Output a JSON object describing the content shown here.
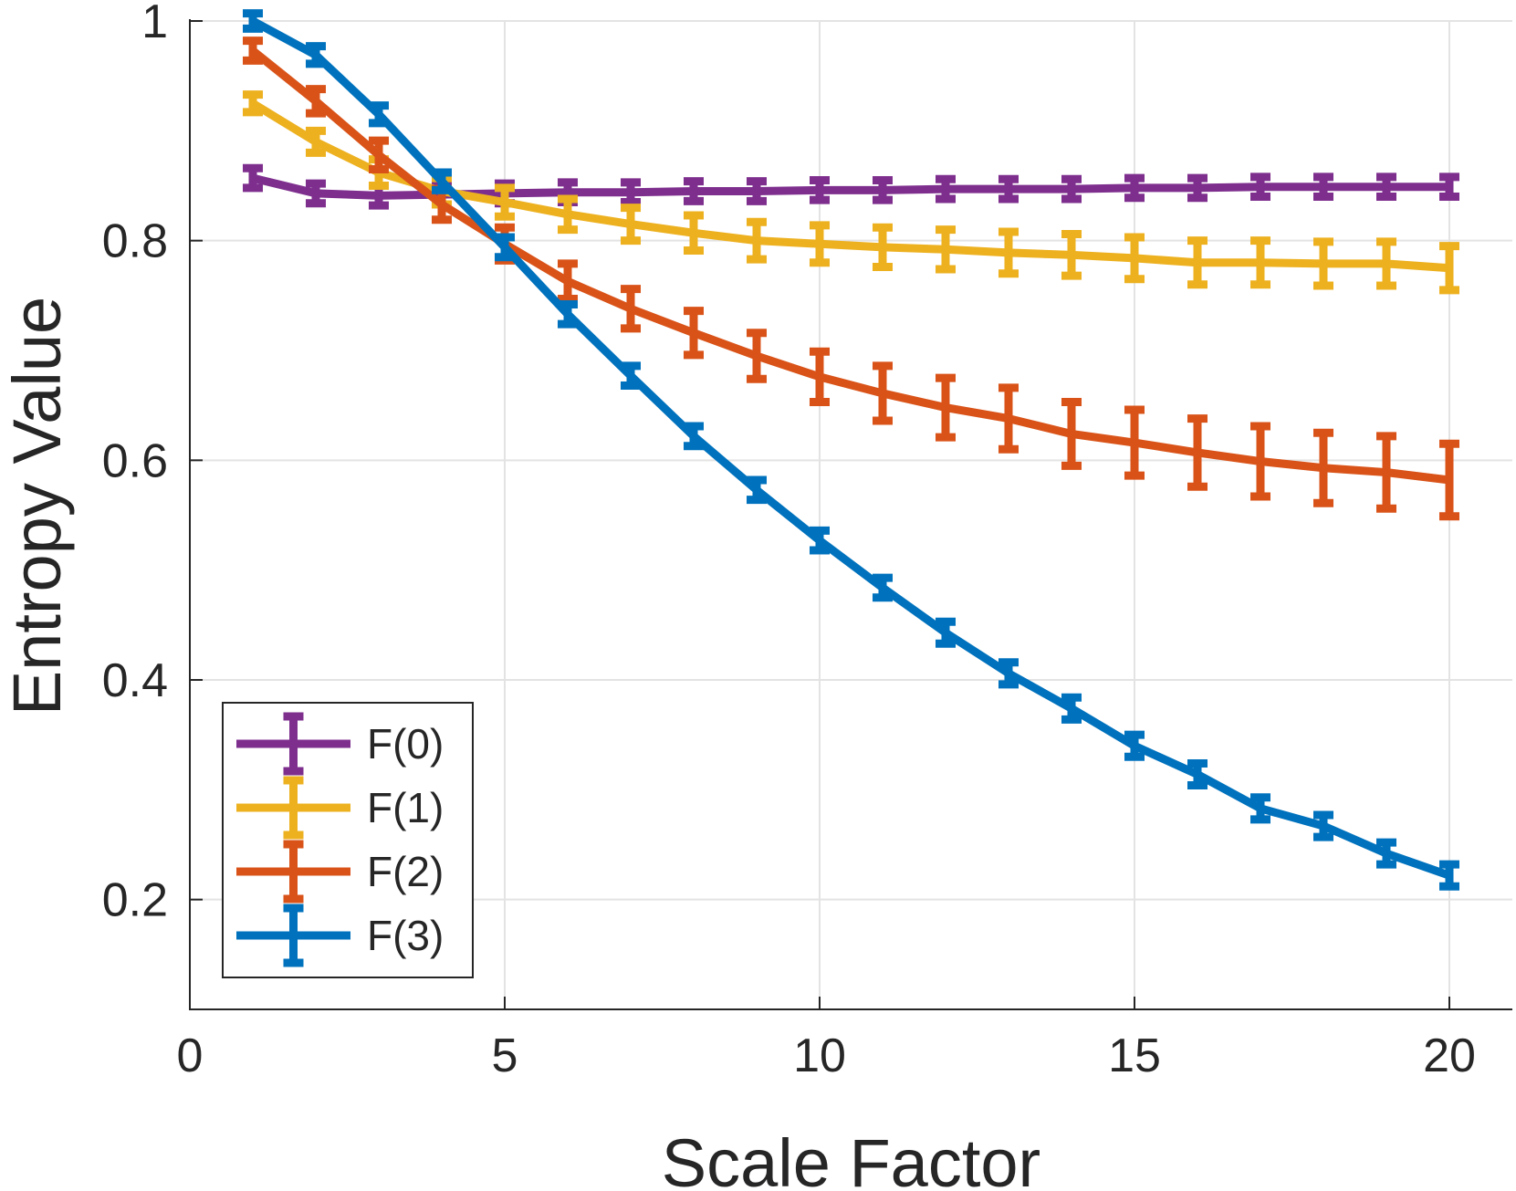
{
  "chart_data": {
    "type": "line",
    "xlabel": "Scale Factor",
    "ylabel": "Entropy Value",
    "xlim": [
      0,
      21
    ],
    "ylim": [
      0.1,
      1
    ],
    "xticks": [
      0,
      5,
      10,
      15,
      20
    ],
    "yticks": [
      0.2,
      0.4,
      0.6,
      0.8,
      1
    ],
    "grid": true,
    "legend_position": "bottom-left",
    "x": [
      1,
      2,
      3,
      4,
      5,
      6,
      7,
      8,
      9,
      10,
      11,
      12,
      13,
      14,
      15,
      16,
      17,
      18,
      19,
      20
    ],
    "series": [
      {
        "name": "F(0)",
        "color": "#7E2F8E",
        "values": [
          0.857,
          0.843,
          0.841,
          0.842,
          0.843,
          0.844,
          0.844,
          0.845,
          0.845,
          0.846,
          0.846,
          0.847,
          0.847,
          0.847,
          0.848,
          0.848,
          0.849,
          0.849,
          0.849,
          0.849
        ],
        "errors": [
          0.009,
          0.009,
          0.009,
          0.009,
          0.009,
          0.009,
          0.009,
          0.009,
          0.009,
          0.009,
          0.009,
          0.009,
          0.009,
          0.009,
          0.009,
          0.009,
          0.009,
          0.009,
          0.009,
          0.009
        ]
      },
      {
        "name": "F(1)",
        "color": "#EDB120",
        "values": [
          0.925,
          0.89,
          0.862,
          0.845,
          0.835,
          0.824,
          0.815,
          0.807,
          0.8,
          0.797,
          0.794,
          0.792,
          0.789,
          0.787,
          0.784,
          0.78,
          0.78,
          0.779,
          0.779,
          0.775
        ],
        "errors": [
          0.008,
          0.01,
          0.012,
          0.012,
          0.013,
          0.014,
          0.015,
          0.016,
          0.017,
          0.017,
          0.018,
          0.018,
          0.019,
          0.019,
          0.019,
          0.02,
          0.02,
          0.02,
          0.02,
          0.02
        ]
      },
      {
        "name": "F(2)",
        "color": "#D95319",
        "values": [
          0.973,
          0.927,
          0.878,
          0.833,
          0.797,
          0.763,
          0.738,
          0.716,
          0.695,
          0.676,
          0.661,
          0.648,
          0.638,
          0.624,
          0.616,
          0.607,
          0.599,
          0.593,
          0.589,
          0.582
        ],
        "errors": [
          0.009,
          0.011,
          0.013,
          0.014,
          0.015,
          0.016,
          0.018,
          0.02,
          0.021,
          0.023,
          0.025,
          0.027,
          0.028,
          0.029,
          0.03,
          0.031,
          0.032,
          0.032,
          0.033,
          0.033
        ]
      },
      {
        "name": "F(3)",
        "color": "#0072BD",
        "values": [
          1.0,
          0.969,
          0.915,
          0.854,
          0.794,
          0.733,
          0.677,
          0.622,
          0.573,
          0.527,
          0.484,
          0.443,
          0.406,
          0.374,
          0.34,
          0.314,
          0.283,
          0.267,
          0.242,
          0.222
        ],
        "errors": [
          0.007,
          0.008,
          0.008,
          0.008,
          0.009,
          0.009,
          0.009,
          0.009,
          0.009,
          0.009,
          0.009,
          0.01,
          0.01,
          0.01,
          0.01,
          0.01,
          0.01,
          0.01,
          0.01,
          0.01
        ]
      }
    ]
  }
}
